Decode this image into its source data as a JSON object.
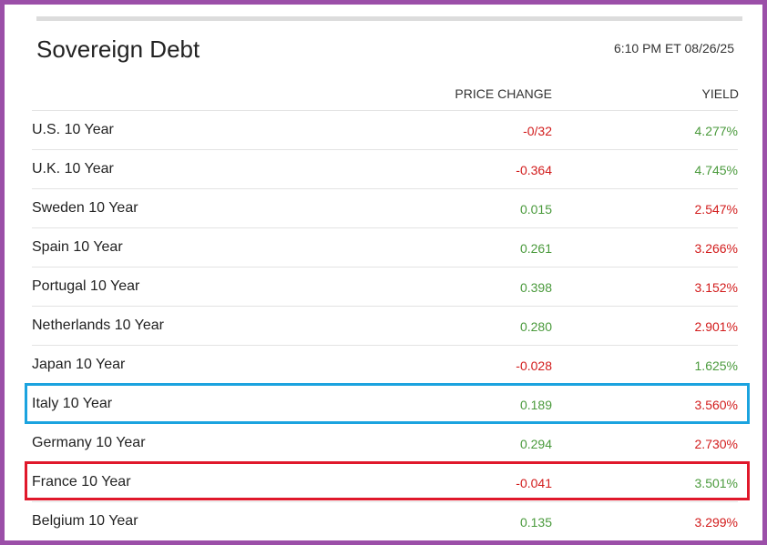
{
  "widget": {
    "title": "Sovereign Debt",
    "timestamp": "6:10 PM ET 08/26/25",
    "columns": {
      "price_change": "PRICE CHANGE",
      "yield": "YIELD"
    }
  },
  "colors": {
    "positive": "#4a9a3c",
    "negative": "#d21c1c",
    "frame": "#9b4fa8",
    "highlight_blue": "#1ba3df",
    "highlight_red": "#e0182b"
  },
  "rows": [
    {
      "name": "U.S. 10 Year",
      "price_change": "-0/32",
      "price_dir": "down",
      "yield": "4.277%",
      "yield_dir": "up"
    },
    {
      "name": "U.K. 10 Year",
      "price_change": "-0.364",
      "price_dir": "down",
      "yield": "4.745%",
      "yield_dir": "up"
    },
    {
      "name": "Sweden 10 Year",
      "price_change": "0.015",
      "price_dir": "up",
      "yield": "2.547%",
      "yield_dir": "down"
    },
    {
      "name": "Spain 10 Year",
      "price_change": "0.261",
      "price_dir": "up",
      "yield": "3.266%",
      "yield_dir": "down"
    },
    {
      "name": "Portugal 10 Year",
      "price_change": "0.398",
      "price_dir": "up",
      "yield": "3.152%",
      "yield_dir": "down"
    },
    {
      "name": "Netherlands 10 Year",
      "price_change": "0.280",
      "price_dir": "up",
      "yield": "2.901%",
      "yield_dir": "down"
    },
    {
      "name": "Japan 10 Year",
      "price_change": "-0.028",
      "price_dir": "down",
      "yield": "1.625%",
      "yield_dir": "up"
    },
    {
      "name": "Italy 10 Year",
      "price_change": "0.189",
      "price_dir": "up",
      "yield": "3.560%",
      "yield_dir": "down"
    },
    {
      "name": "Germany 10 Year",
      "price_change": "0.294",
      "price_dir": "up",
      "yield": "2.730%",
      "yield_dir": "down"
    },
    {
      "name": "France 10 Year",
      "price_change": "-0.041",
      "price_dir": "down",
      "yield": "3.501%",
      "yield_dir": "up"
    },
    {
      "name": "Belgium 10 Year",
      "price_change": "0.135",
      "price_dir": "up",
      "yield": "3.299%",
      "yield_dir": "down"
    }
  ]
}
